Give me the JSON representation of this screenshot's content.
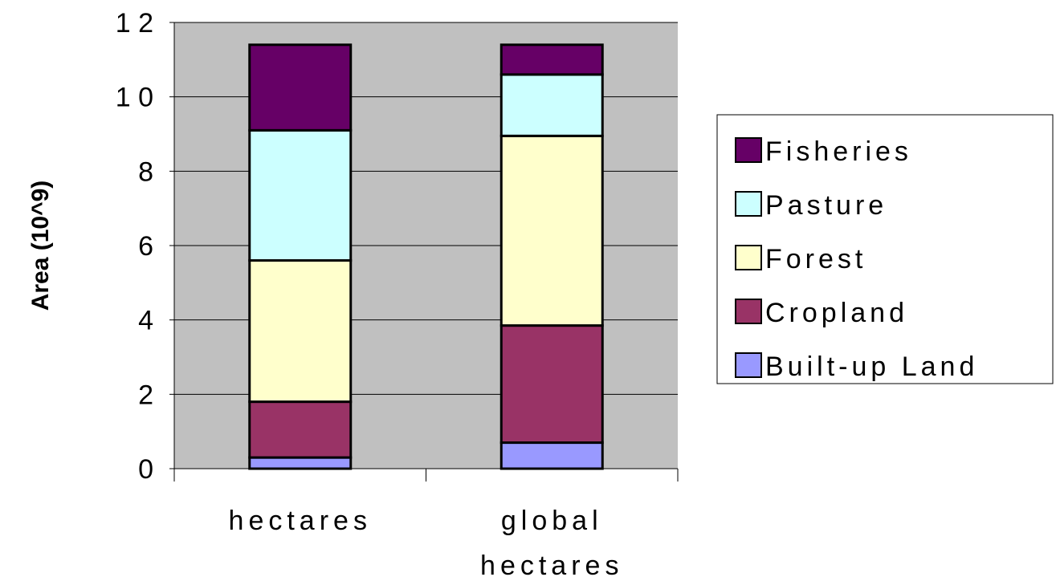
{
  "chart_data": {
    "type": "bar",
    "stacked": true,
    "categories": [
      "hectares",
      "global hectares"
    ],
    "category_lines": [
      [
        "hectares"
      ],
      [
        "global",
        "hectares"
      ]
    ],
    "series": [
      {
        "name": "Built-up Land",
        "values": [
          0.3,
          0.7
        ],
        "color": "#9999ff"
      },
      {
        "name": "Cropland",
        "values": [
          1.5,
          3.15
        ],
        "color": "#993366"
      },
      {
        "name": "Forest",
        "values": [
          3.8,
          5.1
        ],
        "color": "#ffffcc"
      },
      {
        "name": "Pasture",
        "values": [
          3.5,
          1.65
        ],
        "color": "#ccffff"
      },
      {
        "name": "Fisheries",
        "values": [
          2.3,
          0.8
        ],
        "color": "#660066"
      }
    ],
    "legend_order": [
      "Fisheries",
      "Pasture",
      "Forest",
      "Cropland",
      "Built-up Land"
    ],
    "title": "",
    "xlabel": "",
    "ylabel": "Area (10^9)",
    "ylim": [
      0,
      12
    ],
    "yticks": [
      0,
      2,
      4,
      6,
      8,
      10,
      12
    ],
    "grid": true,
    "legend_position": "right",
    "plot_background": "#c0c0c0"
  }
}
